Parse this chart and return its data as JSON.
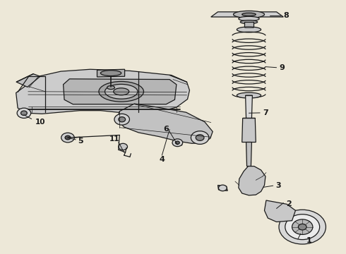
{
  "background_color": "#ede8d8",
  "line_color": "#1a1a1a",
  "label_color": "#1a1a1a",
  "figsize": [
    4.9,
    3.6
  ],
  "dpi": 100
}
